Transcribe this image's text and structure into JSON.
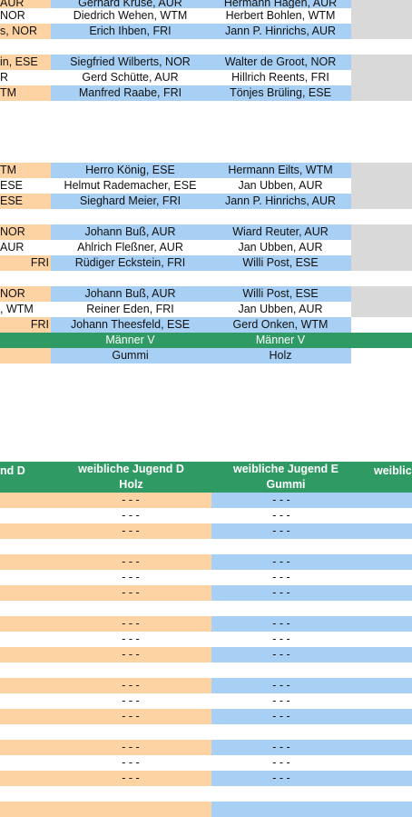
{
  "top_rows": [
    {
      "c0": "AUR",
      "c1": "Gerhard Kruse, AUR",
      "c2": "Hermann Hagen, AUR"
    },
    {
      "c0": "NOR",
      "c1": "Diedrich Wehen, WTM",
      "c2": "Herbert Bohlen, WTM"
    },
    {
      "c0": "s, NOR",
      "c1": "Erich Ihben, FRI",
      "c2": "Jann P. Hinrichs, AUR"
    },
    {
      "c0": "in, ESE",
      "c1": "Siegfried Wilberts, NOR",
      "c2": "Walter de Groot, NOR"
    },
    {
      "c0": "R",
      "c1": "Gerd Schütte, AUR",
      "c2": "Hillrich Reents, FRI"
    },
    {
      "c0": "TM",
      "c1": "Manfred Raabe, FRI",
      "c2": "Tönjes Brüling, ESE"
    },
    {
      "c0": "TM",
      "c1": "Herro König, ESE",
      "c2": "Hermann Eilts, WTM"
    },
    {
      "c0": "ESE",
      "c1": "Helmut Rademacher, ESE",
      "c2": "Jan Ubben, AUR"
    },
    {
      "c0": "ESE",
      "c1": "Sieghard Meier, FRI",
      "c2": "Jann P. Hinrichs, AUR"
    },
    {
      "c0": "NOR",
      "c1": "Johann Buß, AUR",
      "c2": "Wiard Reuter, AUR"
    },
    {
      "c0": "AUR",
      "c1": "Ahlrich Fleßner, AUR",
      "c2": "Jan Ubben, AUR"
    },
    {
      "c0": "FRI",
      "c1": "Rüdiger Eckstein, FRI",
      "c2": "Willi Post, ESE"
    },
    {
      "c0": "NOR",
      "c1": "Johann Buß, AUR",
      "c2": "Willi Post, ESE"
    },
    {
      "c0": ", WTM",
      "c1": "Reiner Eden, FRI",
      "c2": "Jan Ubben, AUR"
    },
    {
      "c0": "FRI",
      "c1": "Johann Theesfeld, ESE",
      "c2": "Gerd Onken, WTM"
    }
  ],
  "class_row": {
    "c1": "Männer V",
    "c2": "Männer V"
  },
  "surface_row": {
    "c1": "Gummi",
    "c2": "Holz"
  },
  "header": {
    "h0": "nd D",
    "h1_line1": "weibliche Jugend D",
    "h1_line2": "Holz",
    "h2_line1": "weibliche Jugend E",
    "h2_line2": "Gummi",
    "h3": "weiblic"
  },
  "dash": "- - -"
}
